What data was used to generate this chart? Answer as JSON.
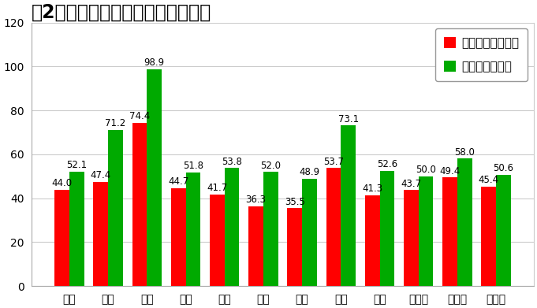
{
  "title": "　2年間、ディズニー月別混雑状況",
  "months": [
    "１月",
    "２月",
    "３月",
    "４月",
    "５月",
    "６月",
    "７月",
    "８月",
    "９月",
    "１０月",
    "１１月",
    "１２月"
  ],
  "disneyland": [
    44.0,
    47.4,
    74.4,
    44.7,
    41.7,
    36.3,
    35.5,
    53.7,
    41.3,
    43.7,
    49.4,
    45.4
  ],
  "disneysea": [
    52.1,
    71.2,
    98.9,
    51.8,
    53.8,
    52.0,
    48.9,
    73.1,
    52.6,
    50.0,
    58.0,
    50.6
  ],
  "land_color": "#FF0000",
  "sea_color": "#00AA00",
  "land_label": "ディズニーランド",
  "sea_label": "ディズニーシー",
  "ylim": [
    0,
    120
  ],
  "yticks": [
    0,
    20,
    40,
    60,
    80,
    100,
    120
  ],
  "background_color": "#FFFFFF",
  "plot_bg_color": "#FFFFFF",
  "grid_color": "#CCCCCC",
  "title_fontsize": 17,
  "label_fontsize": 8.5,
  "tick_fontsize": 10,
  "legend_fontsize": 11,
  "bar_width": 0.38
}
